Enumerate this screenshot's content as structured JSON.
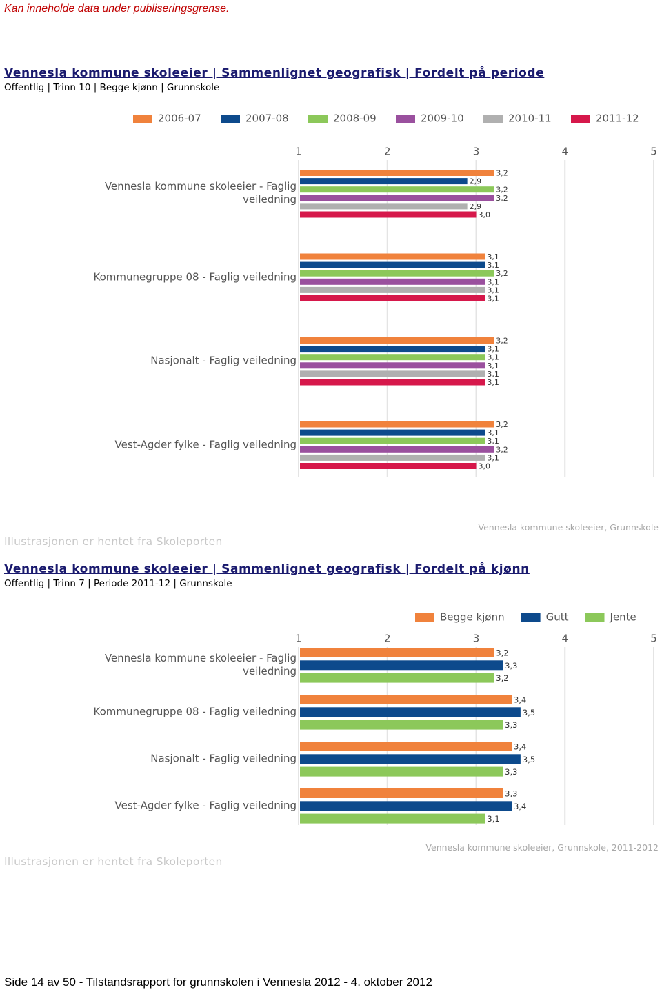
{
  "notice": "Kan inneholde data under publiseringsgrense.",
  "chart_data": [
    {
      "type": "bar",
      "orientation": "horizontal",
      "title": "Vennesla kommune skoleeier | Sammenlignet geografisk | Fordelt på periode",
      "subtitle": "Offentlig | Trinn 10 | Begge kjønn | Grunnskole",
      "categories": [
        "Vennesla kommune skoleeier - Faglig veiledning",
        "Kommunegruppe 08 - Faglig veiledning",
        "Nasjonalt - Faglig veiledning",
        "Vest-Agder fylke - Faglig veiledning"
      ],
      "series": [
        {
          "name": "2006-07",
          "color": "#f0823c",
          "values": [
            3.2,
            3.1,
            3.2,
            3.2
          ],
          "value_labels": [
            "3,2",
            "3,1",
            "3,2",
            "3,2"
          ]
        },
        {
          "name": "2007-08",
          "color": "#0d4a8c",
          "values": [
            2.9,
            3.1,
            3.1,
            3.1
          ],
          "value_labels": [
            "2,9",
            "3,1",
            "3,1",
            "3,1"
          ]
        },
        {
          "name": "2008-09",
          "color": "#8cc85a",
          "values": [
            3.2,
            3.2,
            3.1,
            3.1
          ],
          "value_labels": [
            "3,2",
            "3,2",
            "3,1",
            "3,1"
          ]
        },
        {
          "name": "2009-10",
          "color": "#9a509e",
          "values": [
            3.2,
            3.1,
            3.1,
            3.2
          ],
          "value_labels": [
            "3,2",
            "3,1",
            "3,1",
            "3,2"
          ]
        },
        {
          "name": "2010-11",
          "color": "#b0b0b0",
          "values": [
            2.9,
            3.1,
            3.1,
            3.1
          ],
          "value_labels": [
            "2,9",
            "3,1",
            "3,1",
            "3,1"
          ]
        },
        {
          "name": "2011-12",
          "color": "#d6184b",
          "values": [
            3.0,
            3.1,
            3.1,
            3.0
          ],
          "value_labels": [
            "3,0",
            "3,1",
            "3,1",
            "3,0"
          ]
        }
      ],
      "xlim": [
        1,
        5
      ],
      "xticks": [
        1,
        2,
        3,
        4,
        5
      ],
      "grid": true,
      "caption": "Illustrasjonen er hentet fra Skoleporten",
      "watermark": "Vennesla kommune skoleeier, Grunnskole"
    },
    {
      "type": "bar",
      "orientation": "horizontal",
      "title": "Vennesla kommune skoleeier | Sammenlignet geografisk | Fordelt på kjønn",
      "subtitle": "Offentlig | Trinn 7 | Periode 2011-12 | Grunnskole",
      "categories": [
        "Vennesla kommune skoleeier - Faglig veiledning",
        "Kommunegruppe 08 - Faglig veiledning",
        "Nasjonalt - Faglig veiledning",
        "Vest-Agder fylke - Faglig veiledning"
      ],
      "series": [
        {
          "name": "Begge kjønn",
          "color": "#f0823c",
          "values": [
            3.2,
            3.4,
            3.4,
            3.3
          ],
          "value_labels": [
            "3,2",
            "3,4",
            "3,4",
            "3,3"
          ]
        },
        {
          "name": "Gutt",
          "color": "#0d4a8c",
          "values": [
            3.3,
            3.5,
            3.5,
            3.4
          ],
          "value_labels": [
            "3,3",
            "3,5",
            "3,5",
            "3,4"
          ]
        },
        {
          "name": "Jente",
          "color": "#8cc85a",
          "values": [
            3.2,
            3.3,
            3.3,
            3.1
          ],
          "value_labels": [
            "3,2",
            "3,3",
            "3,3",
            "3,1"
          ]
        }
      ],
      "xlim": [
        1,
        5
      ],
      "xticks": [
        1,
        2,
        3,
        4,
        5
      ],
      "grid": true,
      "caption": "Illustrasjonen er hentet fra Skoleporten",
      "watermark": "Vennesla kommune skoleeier, Grunnskole, 2011-2012"
    }
  ],
  "footer": "Side 14 av 50 - Tilstandsrapport for grunnskolen i Vennesla 2012 - 4. oktober 2012"
}
